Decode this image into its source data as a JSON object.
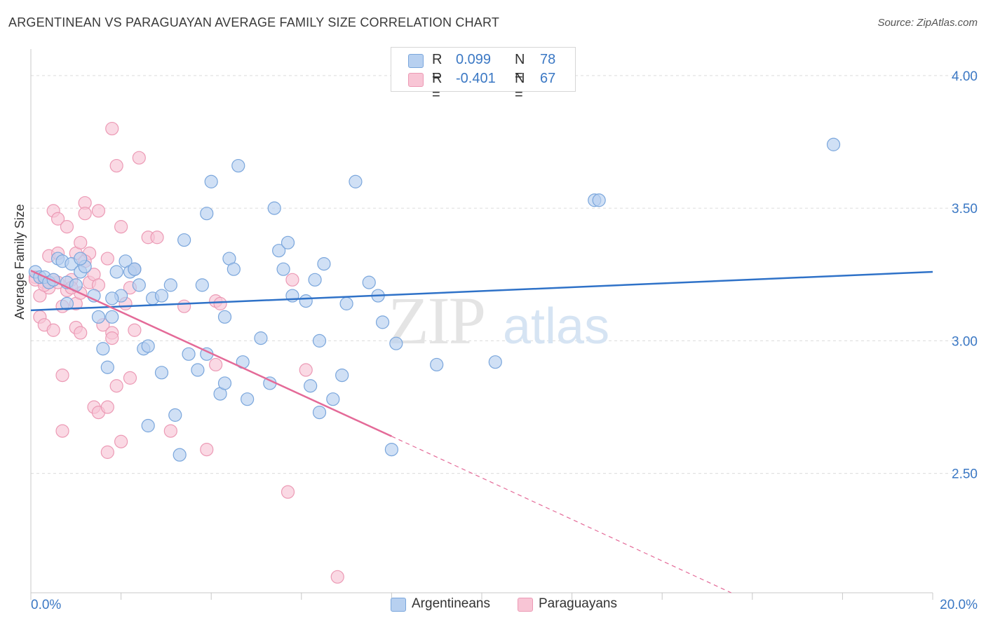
{
  "title": "ARGENTINEAN VS PARAGUAYAN AVERAGE FAMILY SIZE CORRELATION CHART",
  "source": "Source: ZipAtlas.com",
  "watermark": {
    "zip": "ZIP",
    "atlas": "atlas"
  },
  "legend": {
    "rows": [
      {
        "r_label": "R =",
        "r_value": "0.099",
        "n_label": "N =",
        "n_value": "78"
      },
      {
        "r_label": "R =",
        "r_value": "-0.401",
        "n_label": "N =",
        "n_value": "67"
      }
    ]
  },
  "bottom_legend": [
    "Argentineans",
    "Paraguayans"
  ],
  "colors": {
    "blue_fill": "#b7d0f0",
    "blue_stroke": "#7aa6dc",
    "blue_line": "#2f72c8",
    "pink_fill": "#f8c5d5",
    "pink_stroke": "#ec9ab5",
    "pink_line": "#e46a98",
    "tick_text": "#3b78c4",
    "grid": "#dcdcdc"
  },
  "chart_data": {
    "type": "scatter",
    "title": "ARGENTINEAN VS PARAGUAYAN AVERAGE FAMILY SIZE CORRELATION CHART",
    "xlabel": "",
    "ylabel": "Average Family Size",
    "xlim": [
      0,
      20
    ],
    "ylim": [
      2.05,
      4.1
    ],
    "x_tick_labels": [
      "0.0%",
      "20.0%"
    ],
    "y_ticks": [
      2.5,
      3.0,
      3.5,
      4.0
    ],
    "y_tick_labels": [
      "2.50",
      "3.00",
      "3.50",
      "4.00"
    ],
    "grid": true,
    "legend_position": "top-center",
    "series": [
      {
        "name": "Argentineans",
        "r": 0.099,
        "n": 78,
        "trend": {
          "x": [
            0,
            20
          ],
          "y": [
            3.115,
            3.26
          ],
          "style": "solid"
        },
        "points": [
          [
            0.1,
            3.26
          ],
          [
            0.2,
            3.24
          ],
          [
            0.3,
            3.24
          ],
          [
            0.4,
            3.22
          ],
          [
            0.5,
            3.23
          ],
          [
            0.6,
            3.31
          ],
          [
            0.7,
            3.3
          ],
          [
            0.8,
            3.22
          ],
          [
            0.9,
            3.29
          ],
          [
            1.0,
            3.21
          ],
          [
            0.8,
            3.14
          ],
          [
            1.1,
            3.26
          ],
          [
            1.2,
            3.28
          ],
          [
            1.4,
            3.17
          ],
          [
            1.5,
            3.09
          ],
          [
            1.6,
            2.97
          ],
          [
            1.7,
            2.9
          ],
          [
            1.8,
            3.09
          ],
          [
            1.9,
            3.26
          ],
          [
            2.0,
            3.17
          ],
          [
            2.1,
            3.3
          ],
          [
            2.2,
            3.26
          ],
          [
            2.3,
            3.27
          ],
          [
            2.4,
            3.21
          ],
          [
            2.5,
            2.97
          ],
          [
            2.6,
            2.98
          ],
          [
            2.6,
            2.68
          ],
          [
            2.7,
            3.16
          ],
          [
            2.9,
            3.17
          ],
          [
            2.9,
            2.88
          ],
          [
            3.1,
            3.21
          ],
          [
            3.2,
            2.72
          ],
          [
            3.3,
            2.57
          ],
          [
            3.4,
            3.38
          ],
          [
            3.5,
            2.95
          ],
          [
            3.7,
            2.89
          ],
          [
            3.8,
            3.21
          ],
          [
            3.9,
            2.95
          ],
          [
            3.9,
            3.48
          ],
          [
            4.0,
            3.6
          ],
          [
            4.2,
            2.8
          ],
          [
            4.3,
            2.84
          ],
          [
            4.3,
            3.09
          ],
          [
            4.4,
            3.31
          ],
          [
            4.5,
            3.27
          ],
          [
            4.6,
            3.66
          ],
          [
            4.7,
            2.92
          ],
          [
            4.8,
            2.78
          ],
          [
            5.1,
            3.01
          ],
          [
            5.3,
            2.84
          ],
          [
            5.4,
            3.5
          ],
          [
            5.5,
            3.34
          ],
          [
            5.6,
            3.27
          ],
          [
            5.7,
            3.37
          ],
          [
            5.8,
            3.17
          ],
          [
            6.1,
            3.15
          ],
          [
            6.2,
            2.83
          ],
          [
            6.3,
            3.23
          ],
          [
            6.4,
            2.73
          ],
          [
            6.4,
            3.0
          ],
          [
            6.5,
            3.29
          ],
          [
            6.7,
            2.78
          ],
          [
            6.9,
            2.87
          ],
          [
            7.0,
            3.14
          ],
          [
            7.2,
            3.6
          ],
          [
            7.5,
            3.22
          ],
          [
            7.7,
            3.17
          ],
          [
            7.8,
            3.07
          ],
          [
            8.1,
            2.99
          ],
          [
            8.0,
            2.59
          ],
          [
            9.0,
            2.91
          ],
          [
            10.3,
            2.92
          ],
          [
            12.5,
            3.53
          ],
          [
            12.6,
            3.53
          ],
          [
            17.8,
            3.74
          ],
          [
            1.8,
            3.16
          ],
          [
            2.3,
            3.27
          ],
          [
            1.1,
            3.31
          ]
        ]
      },
      {
        "name": "Paraguayans",
        "r": -0.401,
        "n": 67,
        "trend": {
          "x": [
            0,
            8.0
          ],
          "y": [
            3.265,
            2.64
          ],
          "style": "solid",
          "extension": {
            "x": [
              8.0,
              20
            ],
            "y": [
              2.64,
              1.7
            ],
            "style": "dashed"
          }
        },
        "points": [
          [
            0.1,
            3.24
          ],
          [
            0.1,
            3.23
          ],
          [
            0.2,
            3.17
          ],
          [
            0.2,
            3.09
          ],
          [
            0.3,
            3.22
          ],
          [
            0.3,
            3.06
          ],
          [
            0.4,
            3.2
          ],
          [
            0.4,
            3.32
          ],
          [
            0.5,
            3.04
          ],
          [
            0.5,
            3.49
          ],
          [
            0.6,
            3.22
          ],
          [
            0.6,
            3.46
          ],
          [
            0.7,
            2.87
          ],
          [
            0.7,
            2.66
          ],
          [
            0.8,
            3.19
          ],
          [
            0.8,
            3.43
          ],
          [
            0.9,
            3.23
          ],
          [
            1.0,
            3.14
          ],
          [
            1.0,
            3.05
          ],
          [
            1.0,
            3.33
          ],
          [
            1.1,
            3.03
          ],
          [
            1.1,
            3.37
          ],
          [
            1.1,
            3.18
          ],
          [
            1.2,
            3.52
          ],
          [
            1.2,
            3.48
          ],
          [
            1.3,
            3.33
          ],
          [
            1.3,
            3.22
          ],
          [
            1.4,
            3.25
          ],
          [
            1.4,
            2.75
          ],
          [
            1.5,
            2.73
          ],
          [
            1.5,
            3.49
          ],
          [
            1.6,
            3.06
          ],
          [
            1.7,
            2.75
          ],
          [
            1.7,
            2.58
          ],
          [
            1.7,
            3.31
          ],
          [
            1.8,
            3.03
          ],
          [
            1.8,
            3.01
          ],
          [
            1.8,
            3.8
          ],
          [
            1.9,
            2.83
          ],
          [
            1.9,
            3.66
          ],
          [
            2.0,
            2.62
          ],
          [
            2.0,
            3.43
          ],
          [
            2.1,
            3.14
          ],
          [
            2.2,
            2.86
          ],
          [
            2.2,
            3.2
          ],
          [
            2.3,
            3.04
          ],
          [
            2.3,
            3.27
          ],
          [
            2.4,
            3.69
          ],
          [
            2.6,
            3.39
          ],
          [
            2.8,
            3.39
          ],
          [
            3.1,
            2.66
          ],
          [
            3.4,
            3.13
          ],
          [
            3.9,
            2.59
          ],
          [
            4.1,
            2.91
          ],
          [
            4.1,
            3.15
          ],
          [
            4.2,
            3.14
          ],
          [
            5.8,
            3.23
          ],
          [
            5.7,
            2.43
          ],
          [
            6.1,
            2.89
          ],
          [
            6.8,
            2.11
          ],
          [
            0.6,
            3.33
          ],
          [
            0.9,
            3.2
          ],
          [
            1.2,
            3.3
          ],
          [
            1.5,
            3.21
          ],
          [
            0.3,
            3.21
          ],
          [
            0.5,
            3.23
          ],
          [
            0.7,
            3.13
          ]
        ]
      }
    ]
  }
}
